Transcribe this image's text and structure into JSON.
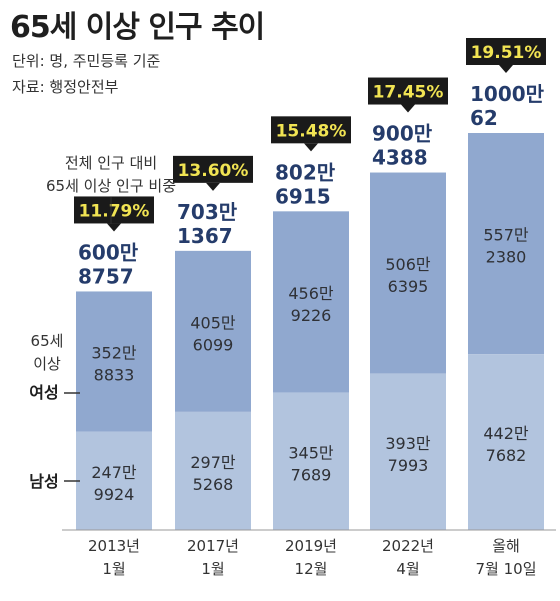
{
  "title": "65세 이상 인구 추이",
  "unit_note": "단위: 명, 주민등록 기준",
  "source_note": "자료: 행정안전부",
  "ratio_annotation": [
    "전체 인구 대비",
    "65세 이상 인구 비중"
  ],
  "colors": {
    "female": "#90a8cf",
    "male": "#b2c4de",
    "total_text": "#253c6b",
    "badge_bg": "#1a1a1a",
    "badge_text": "#f1e453"
  },
  "chart_data": {
    "type": "bar",
    "stacked": true,
    "categories": [
      [
        "2013년",
        "1월"
      ],
      [
        "2017년",
        "1월"
      ],
      [
        "2019년",
        "12월"
      ],
      [
        "2022년",
        "4월"
      ],
      [
        "올해",
        "7월 10일"
      ]
    ],
    "series": [
      {
        "name": "남성",
        "values": [
          2479924,
          2975268,
          3457689,
          3937993,
          4427682
        ],
        "labels": [
          [
            "247만",
            "9924"
          ],
          [
            "297만",
            "5268"
          ],
          [
            "345만",
            "7689"
          ],
          [
            "393만",
            "7993"
          ],
          [
            "442만",
            "7682"
          ]
        ]
      },
      {
        "name": "여성",
        "values": [
          3528833,
          4056099,
          4569226,
          5066395,
          5572380
        ],
        "labels": [
          [
            "352만",
            "8833"
          ],
          [
            "405만",
            "6099"
          ],
          [
            "456만",
            "9226"
          ],
          [
            "506만",
            "6395"
          ],
          [
            "557만",
            "2380"
          ]
        ]
      }
    ],
    "legend_label": [
      "65세",
      "이상",
      "여성",
      "남성"
    ],
    "totals": [
      6008757,
      7031367,
      8026915,
      9004388,
      10000062
    ],
    "total_labels": [
      [
        "600만",
        "8757"
      ],
      [
        "703만",
        "1367"
      ],
      [
        "802만",
        "6915"
      ],
      [
        "900만",
        "4388"
      ],
      [
        "1000만",
        "62"
      ]
    ],
    "ratio_labels": [
      "11.79%",
      "13.60%",
      "15.48%",
      "17.45%",
      "19.51%"
    ],
    "ratios": [
      11.79,
      13.6,
      15.48,
      17.45,
      19.51
    ]
  }
}
